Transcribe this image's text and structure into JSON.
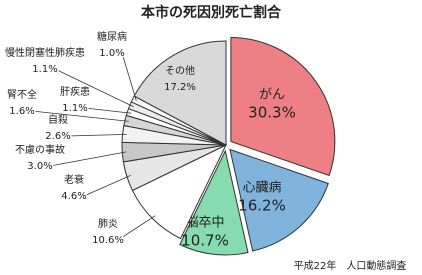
{
  "chart_data": {
    "type": "pie",
    "title": "本市の死因別死亡割合",
    "note": "平成22年　人口動態調査",
    "categories": [
      "がん",
      "心臓病",
      "脳卒中",
      "肺炎",
      "老衰",
      "不慮の事故",
      "自殺",
      "腎不全",
      "肝疾患",
      "慢性閉塞性肺疾患",
      "糖尿病",
      "その他"
    ],
    "values": [
      30.3,
      16.2,
      10.7,
      10.6,
      4.6,
      3.0,
      2.6,
      1.6,
      1.1,
      1.1,
      1.0,
      17.2
    ],
    "value_labels": [
      "30.3%",
      "16.2%",
      "10.7%",
      "10.6%",
      "4.6%",
      "3.0%",
      "2.6%",
      "1.6%",
      "1.1%",
      "1.1%",
      "1.0%",
      "17.2%"
    ],
    "colors": [
      "#ee8085",
      "#80b4dc",
      "#86dcae",
      "#ffffff",
      "#e6e6e6",
      "#c8c8c8",
      "#f2f2f2",
      "#d6d6d6",
      "#ffffff",
      "#ececec",
      "#f7f7f7",
      "#d9d9d9"
    ]
  }
}
